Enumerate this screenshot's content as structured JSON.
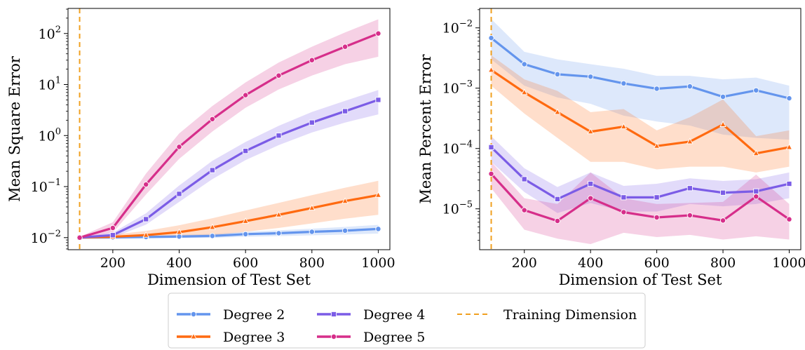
{
  "colors": {
    "degree2": "#6495ED",
    "degree3": "#FF6A10",
    "degree4": "#7B5CE6",
    "degree5": "#D62E8A",
    "training": "#F0A020"
  },
  "chart_data": [
    {
      "type": "line",
      "title": "",
      "xlabel": "Dimension of Test Set",
      "ylabel": "Mean Square Error",
      "yscale": "log",
      "xlim": [
        65,
        1035
      ],
      "ylim": [
        0.0058,
        310
      ],
      "xticks": [
        {
          "value": 200,
          "label": "200"
        },
        {
          "value": 400,
          "label": "400"
        },
        {
          "value": 600,
          "label": "600"
        },
        {
          "value": 800,
          "label": "800"
        },
        {
          "value": 1000,
          "label": "1000"
        }
      ],
      "yticks": [
        {
          "value": 0.01,
          "base": "10",
          "exp": "−2"
        },
        {
          "value": 0.1,
          "base": "10",
          "exp": "−1"
        },
        {
          "value": 1,
          "base": "10",
          "exp": "0"
        },
        {
          "value": 10,
          "base": "10",
          "exp": "1"
        },
        {
          "value": 100,
          "base": "10",
          "exp": "2"
        }
      ],
      "training_dimension": 100,
      "x": [
        100,
        200,
        300,
        400,
        500,
        600,
        700,
        800,
        900,
        1000
      ],
      "series": [
        {
          "name": "Degree 2",
          "color_key": "degree2",
          "marker": "circle",
          "values": [
            0.01,
            0.0101,
            0.0103,
            0.0105,
            0.0108,
            0.0117,
            0.0122,
            0.013,
            0.0137,
            0.0148
          ],
          "lower": [
            0.0098,
            0.0097,
            0.0097,
            0.0098,
            0.0099,
            0.0104,
            0.0107,
            0.0111,
            0.0115,
            0.012
          ],
          "upper": [
            0.0102,
            0.0106,
            0.011,
            0.0113,
            0.0118,
            0.013,
            0.0139,
            0.015,
            0.0162,
            0.0178
          ]
        },
        {
          "name": "Degree 3",
          "color_key": "degree3",
          "marker": "triangle",
          "values": [
            0.01,
            0.0104,
            0.0112,
            0.0128,
            0.016,
            0.021,
            0.028,
            0.038,
            0.052,
            0.068
          ],
          "lower": [
            0.0097,
            0.0097,
            0.0098,
            0.0102,
            0.0112,
            0.013,
            0.0155,
            0.019,
            0.0235,
            0.028
          ],
          "upper": [
            0.0104,
            0.0115,
            0.0135,
            0.0175,
            0.024,
            0.034,
            0.048,
            0.068,
            0.095,
            0.13
          ]
        },
        {
          "name": "Degree 4",
          "color_key": "degree4",
          "marker": "square",
          "values": [
            0.01,
            0.0112,
            0.023,
            0.072,
            0.21,
            0.5,
            1.0,
            1.8,
            3.0,
            5.0
          ],
          "lower": [
            0.0097,
            0.01,
            0.018,
            0.05,
            0.14,
            0.33,
            0.65,
            1.15,
            1.8,
            2.6
          ],
          "upper": [
            0.0104,
            0.0125,
            0.03,
            0.105,
            0.32,
            0.75,
            1.55,
            2.9,
            4.8,
            7.8
          ]
        },
        {
          "name": "Degree 5",
          "color_key": "degree5",
          "marker": "circle",
          "values": [
            0.01,
            0.0155,
            0.11,
            0.6,
            2.1,
            6.2,
            15.0,
            30.0,
            55.0,
            100.0
          ],
          "lower": [
            0.0097,
            0.0125,
            0.07,
            0.35,
            1.2,
            3.5,
            8.0,
            15.0,
            25.0,
            35.0
          ],
          "upper": [
            0.0104,
            0.02,
            0.18,
            1.1,
            3.8,
            11.0,
            27.0,
            55.0,
            105.0,
            190.0
          ]
        }
      ],
      "grid": false
    },
    {
      "type": "line",
      "title": "",
      "xlabel": "Dimension of Test Set",
      "ylabel": "Mean Percent Error",
      "yscale": "log",
      "xlim": [
        65,
        1035
      ],
      "ylim": [
        2.1e-06,
        0.021
      ],
      "xticks": [
        {
          "value": 200,
          "label": "200"
        },
        {
          "value": 400,
          "label": "400"
        },
        {
          "value": 600,
          "label": "600"
        },
        {
          "value": 800,
          "label": "800"
        },
        {
          "value": 1000,
          "label": "1000"
        }
      ],
      "yticks": [
        {
          "value": 1e-05,
          "base": "10",
          "exp": "−5"
        },
        {
          "value": 0.0001,
          "base": "10",
          "exp": "−4"
        },
        {
          "value": 0.001,
          "base": "10",
          "exp": "−3"
        },
        {
          "value": 0.01,
          "base": "10",
          "exp": "−2"
        }
      ],
      "training_dimension": 100,
      "x": [
        100,
        200,
        300,
        400,
        500,
        600,
        700,
        800,
        900,
        1000
      ],
      "series": [
        {
          "name": "Degree 2",
          "color_key": "degree2",
          "marker": "circle",
          "values": [
            0.0068,
            0.0025,
            0.0017,
            0.00155,
            0.0012,
            0.00098,
            0.00107,
            0.00072,
            0.00092,
            0.00068
          ],
          "lower": [
            0.003,
            0.0011,
            0.0007,
            0.00055,
            0.00035,
            0.00028,
            0.00024,
            0.00017,
            0.00015,
            0.00014
          ],
          "upper": [
            0.014,
            0.004,
            0.003,
            0.0025,
            0.0021,
            0.0016,
            0.0016,
            0.0014,
            0.0015,
            0.0011
          ]
        },
        {
          "name": "Degree 3",
          "color_key": "degree3",
          "marker": "triangle",
          "values": [
            0.002,
            0.00085,
            0.0004,
            0.00019,
            0.00023,
            0.00011,
            0.00013,
            0.00025,
            8.3e-05,
            0.000105
          ],
          "lower": [
            0.0011,
            0.00038,
            0.00015,
            6e-05,
            6e-05,
            4.5e-05,
            5e-05,
            5e-05,
            4e-05,
            5e-05
          ],
          "upper": [
            0.0035,
            0.0014,
            0.0009,
            0.0004,
            0.00045,
            0.0002,
            0.00033,
            0.00065,
            0.00016,
            0.0002
          ]
        },
        {
          "name": "Degree 4",
          "color_key": "degree4",
          "marker": "square",
          "values": [
            0.000105,
            3.1e-05,
            1.45e-05,
            2.6e-05,
            1.55e-05,
            1.55e-05,
            2.2e-05,
            1.85e-05,
            1.95e-05,
            2.6e-05
          ],
          "lower": [
            6e-05,
            1.9e-05,
            8.5e-06,
            1.25e-05,
            9e-06,
            9e-06,
            1.2e-05,
            1.1e-05,
            1.2e-05,
            1.5e-05
          ],
          "upper": [
            0.00016,
            4.7e-05,
            2.3e-05,
            4e-05,
            2.4e-05,
            2.6e-05,
            3.2e-05,
            2.9e-05,
            3.1e-05,
            4e-05
          ]
        },
        {
          "name": "Degree 5",
          "color_key": "degree5",
          "marker": "circle",
          "values": [
            3.8e-05,
            9.5e-06,
            6.3e-06,
            1.5e-05,
            8.8e-06,
            7.2e-06,
            7.8e-06,
            6.4e-06,
            1.6e-05,
            6.7e-06
          ],
          "lower": [
            2.2e-05,
            4.5e-06,
            3.2e-06,
            2.6e-06,
            4e-06,
            3.4e-06,
            3.7e-06,
            3.1e-06,
            3.5e-06,
            3.1e-06
          ],
          "upper": [
            6e-05,
            1.5e-05,
            1.2e-05,
            4e-05,
            1.5e-05,
            1.2e-05,
            1.25e-05,
            1.3e-05,
            3.7e-05,
            1.2e-05
          ]
        }
      ],
      "grid": false
    }
  ],
  "legend": {
    "placement": "bottom-center",
    "entries": [
      {
        "label": "Degree 2",
        "color_key": "degree2",
        "style": "line",
        "marker": "circle"
      },
      {
        "label": "Degree 3",
        "color_key": "degree3",
        "style": "line",
        "marker": "triangle"
      },
      {
        "label": "Degree 4",
        "color_key": "degree4",
        "style": "line",
        "marker": "square"
      },
      {
        "label": "Degree 5",
        "color_key": "degree5",
        "style": "line",
        "marker": "circle"
      },
      {
        "label": "Training Dimension",
        "color_key": "training",
        "style": "dashed"
      }
    ]
  }
}
